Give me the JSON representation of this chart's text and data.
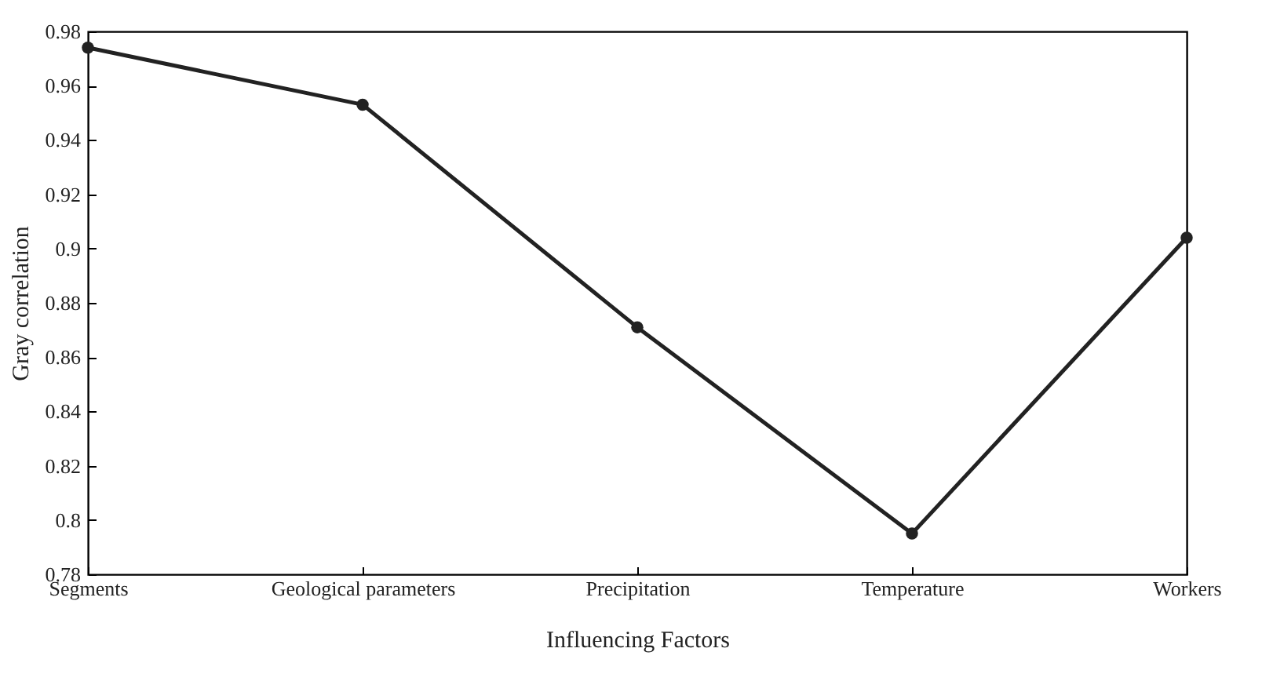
{
  "chart_data": {
    "type": "line",
    "xlabel": "Influencing Factors",
    "ylabel": "Gray correlation",
    "categories": [
      "Segments",
      "Geological parameters",
      "Precipitation",
      "Temperature",
      "Workers"
    ],
    "series": [
      {
        "color": "#222222",
        "values": [
          0.974,
          0.953,
          0.871,
          0.795,
          0.904
        ]
      }
    ],
    "ylim": [
      0.78,
      0.98
    ],
    "yticks": [
      0.78,
      0.8,
      0.82,
      0.84,
      0.86,
      0.88,
      0.9,
      0.92,
      0.94,
      0.96,
      0.98
    ],
    "grid": false,
    "legend": false,
    "marker": "circle",
    "line_style": "solid"
  }
}
